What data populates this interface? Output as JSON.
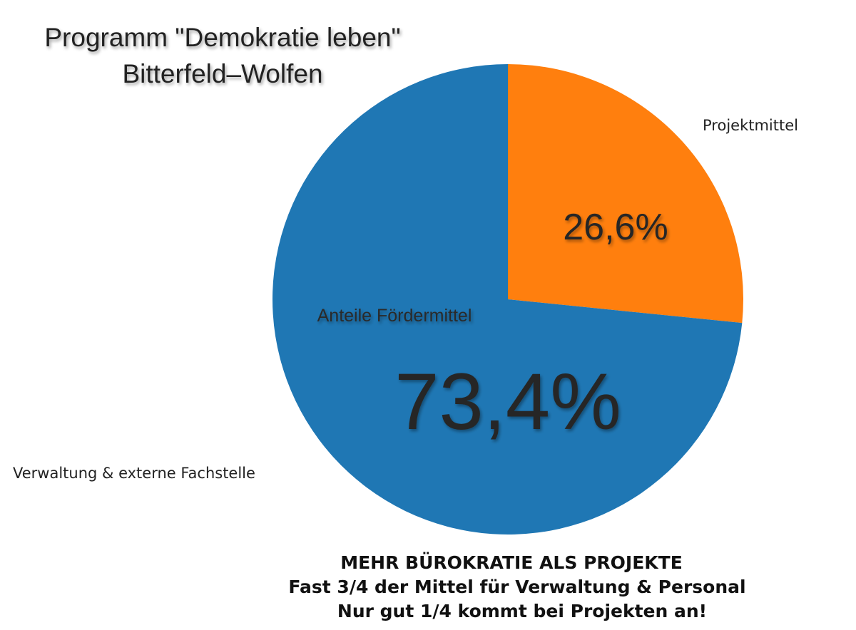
{
  "title": {
    "line1": "Programm \"Demokratie leben\"",
    "line2": "Bitterfeld–Wolfen"
  },
  "chart_data": {
    "type": "pie",
    "center_label": "Anteile Fördermittel",
    "slices": [
      {
        "label": "Projektmittel",
        "value": 26.6,
        "display": "26,6%",
        "color": "#ff7f0e"
      },
      {
        "label": "Verwaltung & externe Fachstelle",
        "value": 73.4,
        "display": "73,4%",
        "color": "#1f77b4"
      }
    ],
    "start_angle": "12 o'clock",
    "direction": "clockwise"
  },
  "caption": {
    "line1": "MEHR BÜROKRATIE ALS PROJEKTE",
    "line2": "Fast 3/4 der Mittel für Verwaltung & Personal",
    "line3": "Nur gut 1/4 kommt bei Projekten an!"
  }
}
